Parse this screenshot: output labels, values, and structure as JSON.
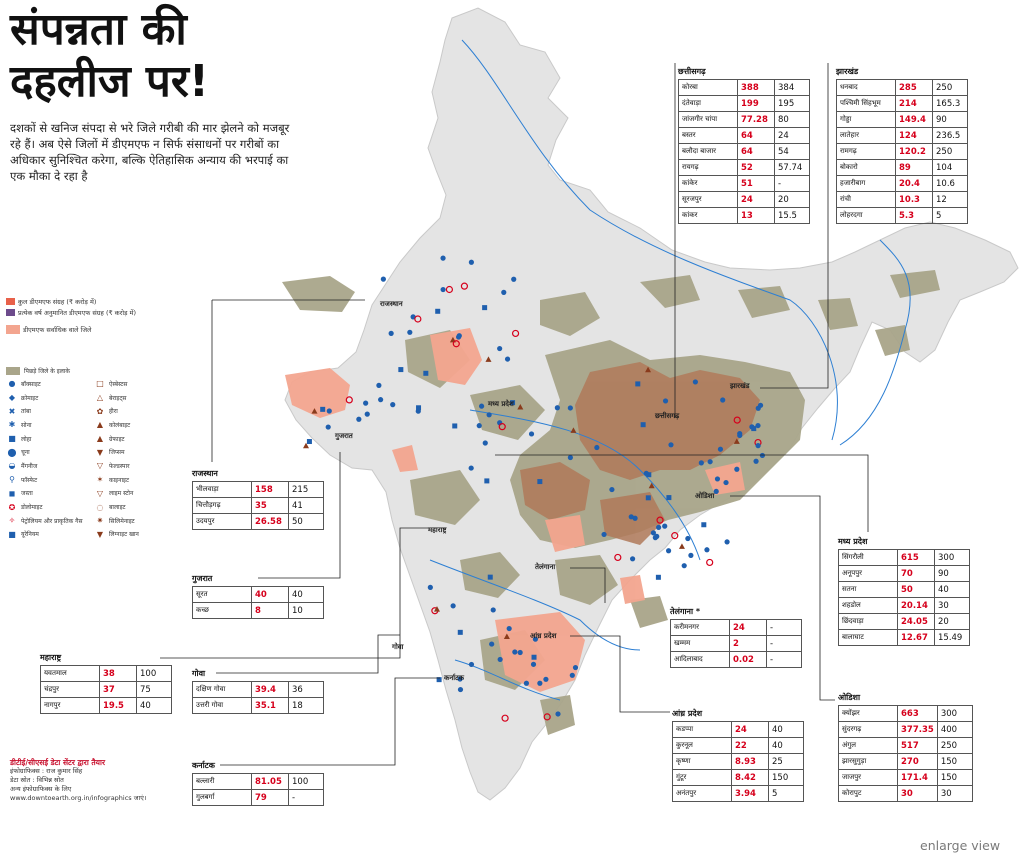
{
  "title": {
    "line1": "संपन्नता की",
    "line2": "दहलीज पर!"
  },
  "intro": "दशकों से खनिज संपदा से भरे जिले गरीबी की मार झेलने को मजबूर रहे हैं। अब ऐसे जिलों में डीएमएफ न सिर्फ संसाधनों पर गरीबों का अधिकार सुनिश्चित करेगा, बल्कि ऐतिहासिक अन्याय की भरपाई का एक मौका दे रहा है",
  "legend": {
    "items": [
      {
        "label": "कुल डीएमएफ संग्रह (₹ करोड़ में)",
        "color": "#e8614a"
      },
      {
        "label": "प्रत्येक वर्ष अनुमानित डीएमएफ संग्रह (₹ करोड़ में)",
        "color": "#6d4b8c"
      },
      {
        "label": "डीएमएफ सर्वाधिक वाले जिले",
        "color": "#f3a58f"
      }
    ],
    "backward_label": "पिछड़े जिले के इलाके",
    "minerals_left": [
      "बॉक्साइट",
      "क्रोमाइट",
      "तांबा",
      "सोना",
      "लोहा",
      "चूना",
      "मैंगनीज",
      "फॉस्फेट",
      "जस्ता",
      "डोलोमाइट",
      "पेट्रोलियम और प्राकृतिक गैस",
      "यूरेनियम"
    ],
    "minerals_right": [
      "ऐस्बेस्टस",
      "बेराइट्स",
      "हीरा",
      "कोलंबाइट",
      "ग्रेफाइट",
      "जिप्सम",
      "फेल्डस्पार",
      "काइनाइट",
      "लाइम स्टोन",
      "बालाइट",
      "सिलिमेनाइट",
      "लिग्नाइट खान"
    ]
  },
  "state_labels": {
    "rajasthan": "राजस्थान",
    "gujarat": "गुजरात",
    "maharashtra": "महाराष्ट्र",
    "goa": "गोवा",
    "karnataka": "कर्नाटक",
    "andhra": "आंध्र प्रदेश",
    "telangana": "तेलंगाना",
    "odisha": "ओडिशा",
    "mp": "मध्य प्रदेश",
    "chhattisgarh": "छत्तीसगढ़",
    "jharkhand": "झारखंड"
  },
  "tables": {
    "chhattisgarh": {
      "title": "छत्तीसगढ़",
      "rows": [
        [
          "कोरबा",
          "388",
          "384"
        ],
        [
          "दंतेवाड़ा",
          "199",
          "195"
        ],
        [
          "जांजगीर चांपा",
          "77.28",
          "80"
        ],
        [
          "बस्तर",
          "64",
          "24"
        ],
        [
          "बलौदा बाजार",
          "64",
          "54"
        ],
        [
          "रायगढ़",
          "52",
          "57.74"
        ],
        [
          "कांकेर",
          "51",
          "-"
        ],
        [
          "सूरजपुर",
          "24",
          "20"
        ],
        [
          "कांकर",
          "13",
          "15.5"
        ]
      ]
    },
    "jharkhand": {
      "title": "झारखंड",
      "rows": [
        [
          "धनबाद",
          "285",
          "250"
        ],
        [
          "पश्चिमी सिंहभूम",
          "214",
          "165.3"
        ],
        [
          "गोड्डा",
          "149.4",
          "90"
        ],
        [
          "लातेहार",
          "124",
          "236.5"
        ],
        [
          "रामगढ़",
          "120.2",
          "250"
        ],
        [
          "बोकारो",
          "89",
          "104"
        ],
        [
          "हजारीबाग",
          "20.4",
          "10.6"
        ],
        [
          "रांची",
          "10.3",
          "12"
        ],
        [
          "लोहरदगा",
          "5.3",
          "5"
        ]
      ]
    },
    "rajasthan": {
      "title": "राजस्थान",
      "rows": [
        [
          "भीलवाड़ा",
          "158",
          "215"
        ],
        [
          "चित्तौड़गढ़",
          "35",
          "41"
        ],
        [
          "उदयपुर",
          "26.58",
          "50"
        ]
      ]
    },
    "gujarat": {
      "title": "गुजरात",
      "rows": [
        [
          "सूरत",
          "40",
          "40"
        ],
        [
          "कच्छ",
          "8",
          "10"
        ]
      ]
    },
    "maharashtra": {
      "title": "महाराष्ट्र",
      "rows": [
        [
          "यवतमाल",
          "38",
          "100"
        ],
        [
          "चंद्रपुर",
          "37",
          "75"
        ],
        [
          "नागपुर",
          "19.5",
          "40"
        ]
      ]
    },
    "goa": {
      "title": "गोवा",
      "rows": [
        [
          "दक्षिण गोवा",
          "39.4",
          "36"
        ],
        [
          "उत्तरी गोवा",
          "35.1",
          "18"
        ]
      ]
    },
    "karnataka": {
      "title": "कर्नाटक",
      "rows": [
        [
          "बल्लारी",
          "81.05",
          "100"
        ],
        [
          "गुलबर्गा",
          "79",
          "-"
        ]
      ]
    },
    "telangana": {
      "title": "तेलंगाना *",
      "rows": [
        [
          "करीमनगर",
          "24",
          "-"
        ],
        [
          "खम्मम",
          "2",
          "-"
        ],
        [
          "आदिलाबाद",
          "0.02",
          "-"
        ]
      ]
    },
    "andhra": {
      "title": "आंध्र प्रदेश",
      "rows": [
        [
          "कडप्पा",
          "24",
          "40"
        ],
        [
          "कुरनूल",
          "22",
          "40"
        ],
        [
          "कृष्णा",
          "8.93",
          "25"
        ],
        [
          "गुंटूर",
          "8.42",
          "150"
        ],
        [
          "अनंतपुर",
          "3.94",
          "5"
        ]
      ]
    },
    "mp": {
      "title": "मध्य प्रदेश",
      "rows": [
        [
          "सिंगरौली",
          "615",
          "300"
        ],
        [
          "अनूपपुर",
          "70",
          "90"
        ],
        [
          "सतना",
          "50",
          "40"
        ],
        [
          "शहडोल",
          "20.14",
          "30"
        ],
        [
          "छिंदवाड़ा",
          "24.05",
          "20"
        ],
        [
          "बालाघाट",
          "12.67",
          "15.49"
        ]
      ]
    },
    "odisha": {
      "title": "ओडिशा",
      "rows": [
        [
          "क्योंझर",
          "663",
          "300"
        ],
        [
          "सुंदरगढ़",
          "377.35",
          "400"
        ],
        [
          "अंगुल",
          "517",
          "250"
        ],
        [
          "झारसुगुड़ा",
          "270",
          "150"
        ],
        [
          "जाजपुर",
          "171.4",
          "150"
        ],
        [
          "कोरापुट",
          "30",
          "30"
        ]
      ]
    }
  },
  "credit": {
    "line1": "डीटीई/सीएसई डेटा सेंटर द्वारा तैयार",
    "line2": "इंफोग्राफिक्स : राज कुमार सिंह",
    "line3": "डेटा स्रोत : विभिन्न स्रोत",
    "line4": "अन्य इंफोग्राफिक्स के लिए www.downtoearth.org.in/infographics जाएं।"
  },
  "enlarge": "enlarge view",
  "colors": {
    "land": "#e4e4e4",
    "backward": "#a9a58a",
    "dmf_high": "#f3a58f",
    "dmf_dark": "#b07a5a",
    "marker_blue": "#1f5fae",
    "marker_red": "#d6001c",
    "river": "#2d7fd3"
  }
}
